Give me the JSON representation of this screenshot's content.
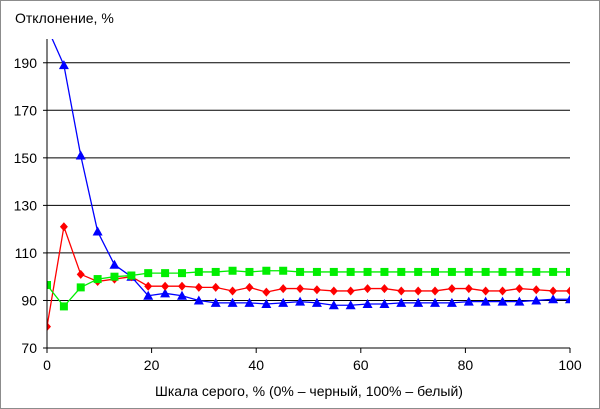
{
  "chart_data": {
    "type": "line",
    "title": "",
    "ylabel": "Отклонение,  %",
    "xlabel": "Шкала серого, % (0% – черный,  100% – белый)",
    "xlim": [
      0,
      100
    ],
    "ylim": [
      70,
      200
    ],
    "xticks": [
      "0",
      "20",
      "40",
      "60",
      "80",
      "100"
    ],
    "yticks": [
      "70",
      "90",
      "110",
      "130",
      "150",
      "170",
      "190"
    ],
    "grid": "horizontal",
    "legend": "none",
    "series": [
      {
        "color": "#0000ff",
        "marker": "triangle",
        "x": [
          0,
          3.23,
          6.45,
          9.68,
          12.9,
          16.13,
          19.35,
          22.58,
          25.81,
          29.03,
          32.26,
          35.48,
          38.71,
          41.94,
          45.16,
          48.39,
          51.61,
          54.84,
          58.06,
          61.29,
          64.52,
          67.74,
          70.97,
          74.19,
          77.42,
          80.65,
          83.87,
          87.1,
          90.32,
          93.55,
          96.77,
          100
        ],
        "y": [
          205,
          189,
          151,
          119,
          105,
          100,
          92,
          93,
          92,
          90,
          89,
          89,
          89,
          88.5,
          89,
          89.5,
          89,
          88,
          88,
          88.5,
          88.5,
          89,
          89,
          89,
          89,
          89.5,
          89.5,
          89.5,
          89.5,
          90,
          90.5,
          90.5
        ]
      },
      {
        "color": "#ff0000",
        "marker": "diamond",
        "x": [
          0,
          3.23,
          6.45,
          9.68,
          12.9,
          16.13,
          19.35,
          22.58,
          25.81,
          29.03,
          32.26,
          35.48,
          38.71,
          41.94,
          45.16,
          48.39,
          51.61,
          54.84,
          58.06,
          61.29,
          64.52,
          67.74,
          70.97,
          74.19,
          77.42,
          80.65,
          83.87,
          87.1,
          90.32,
          93.55,
          96.77,
          100
        ],
        "y": [
          79,
          121,
          101,
          98,
          99,
          100,
          96,
          96,
          96,
          95.5,
          95.5,
          94,
          95.5,
          93.5,
          95,
          95,
          94.5,
          94,
          94,
          95,
          95,
          94,
          94,
          94,
          95,
          95,
          94,
          94,
          95,
          94.5,
          94,
          94
        ]
      },
      {
        "color": "#00ee00",
        "marker": "square",
        "x": [
          0,
          3.23,
          6.45,
          9.68,
          12.9,
          16.13,
          19.35,
          22.58,
          25.81,
          29.03,
          32.26,
          35.48,
          38.71,
          41.94,
          45.16,
          48.39,
          51.61,
          54.84,
          58.06,
          61.29,
          64.52,
          67.74,
          70.97,
          74.19,
          77.42,
          80.65,
          83.87,
          87.1,
          90.32,
          93.55,
          96.77,
          100
        ],
        "y": [
          96.5,
          87.5,
          95.5,
          99,
          100,
          100.5,
          101.5,
          101.5,
          101.5,
          102,
          102,
          102.5,
          102,
          102.5,
          102.5,
          102,
          102,
          102,
          102,
          102,
          102,
          102,
          102,
          102,
          102,
          102,
          102,
          102,
          102,
          102,
          102,
          102
        ]
      }
    ]
  }
}
